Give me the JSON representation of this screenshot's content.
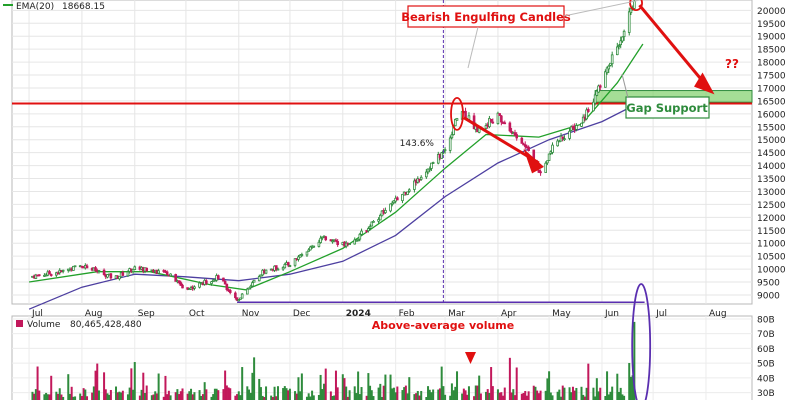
{
  "chart_data": {
    "type": "candlestick",
    "legend": {
      "ema20_label": "EMA(20)",
      "ema20_value": "18668.15",
      "ema20_color": "#22a02a",
      "sma_color": "#4d3fa0"
    },
    "x_labels": [
      "Jul",
      "Aug",
      "Sep",
      "Oct",
      "Nov",
      "Dec",
      "2024",
      "Feb",
      "Mar",
      "Apr",
      "May",
      "Jun",
      "Jul",
      "Aug"
    ],
    "y_ticks": [
      9000,
      9500,
      10000,
      10500,
      11000,
      11500,
      12000,
      12500,
      13000,
      13500,
      14000,
      14500,
      15000,
      15500,
      16000,
      16500,
      17000,
      17500,
      18000,
      18500,
      19000,
      19500,
      20000
    ],
    "price_range": [
      8650,
      20400
    ],
    "support_level": 16400,
    "gap_zone": [
      16450,
      16900
    ],
    "price_path": [
      {
        "date": "2023-07-01",
        "value": 9700
      },
      {
        "date": "2023-07-20",
        "value": 9900
      },
      {
        "date": "2023-08-01",
        "value": 10150
      },
      {
        "date": "2023-08-20",
        "value": 9650
      },
      {
        "date": "2023-09-01",
        "value": 10050
      },
      {
        "date": "2023-09-20",
        "value": 9850
      },
      {
        "date": "2023-10-01",
        "value": 9200
      },
      {
        "date": "2023-10-20",
        "value": 9700
      },
      {
        "date": "2023-10-31",
        "value": 8800
      },
      {
        "date": "2023-11-15",
        "value": 9900
      },
      {
        "date": "2023-12-01",
        "value": 10200
      },
      {
        "date": "2023-12-20",
        "value": 11200
      },
      {
        "date": "2024-01-05",
        "value": 10900
      },
      {
        "date": "2024-01-20",
        "value": 11900
      },
      {
        "date": "2024-02-10",
        "value": 13200
      },
      {
        "date": "2024-03-01",
        "value": 14600
      },
      {
        "date": "2024-03-10",
        "value": 16200
      },
      {
        "date": "2024-03-20",
        "value": 15400
      },
      {
        "date": "2024-04-01",
        "value": 15900
      },
      {
        "date": "2024-04-20",
        "value": 14500
      },
      {
        "date": "2024-04-25",
        "value": 13700
      },
      {
        "date": "2024-05-05",
        "value": 14900
      },
      {
        "date": "2024-05-20",
        "value": 15700
      },
      {
        "date": "2024-06-01",
        "value": 17200
      },
      {
        "date": "2024-06-10",
        "value": 18600
      },
      {
        "date": "2024-06-20",
        "value": 20300
      }
    ],
    "ema20_path": [
      {
        "date": "2023-07-01",
        "value": 9500
      },
      {
        "date": "2023-08-10",
        "value": 9900
      },
      {
        "date": "2023-09-10",
        "value": 9900
      },
      {
        "date": "2023-10-15",
        "value": 9400
      },
      {
        "date": "2023-11-05",
        "value": 9200
      },
      {
        "date": "2023-12-01",
        "value": 9900
      },
      {
        "date": "2024-01-01",
        "value": 10800
      },
      {
        "date": "2024-02-01",
        "value": 12200
      },
      {
        "date": "2024-03-01",
        "value": 13900
      },
      {
        "date": "2024-03-25",
        "value": 15200
      },
      {
        "date": "2024-04-25",
        "value": 15100
      },
      {
        "date": "2024-05-20",
        "value": 15600
      },
      {
        "date": "2024-06-10",
        "value": 17200
      },
      {
        "date": "2024-06-25",
        "value": 18700
      }
    ],
    "sma_path": [
      {
        "date": "2023-07-01",
        "value": 8450
      },
      {
        "date": "2023-08-01",
        "value": 9300
      },
      {
        "date": "2023-09-01",
        "value": 9800
      },
      {
        "date": "2023-10-01",
        "value": 9700
      },
      {
        "date": "2023-11-01",
        "value": 9550
      },
      {
        "date": "2023-12-01",
        "value": 9800
      },
      {
        "date": "2024-01-01",
        "value": 10300
      },
      {
        "date": "2024-02-01",
        "value": 11300
      },
      {
        "date": "2024-03-01",
        "value": 12800
      },
      {
        "date": "2024-04-01",
        "value": 14100
      },
      {
        "date": "2024-05-01",
        "value": 15000
      },
      {
        "date": "2024-06-01",
        "value": 15700
      },
      {
        "date": "2024-06-25",
        "value": 16500
      }
    ],
    "annotations": {
      "bearish_label": "Bearish Engulfing Candles",
      "gap_label": "Gap Support",
      "question_label": "??",
      "pct_label": "143.6%",
      "volume_note": "Above-average volume"
    },
    "colors": {
      "up": "#2e8b3c",
      "down": "#c2185b",
      "annotation": "#e01010",
      "guide": "#5a2fb0"
    },
    "volume": {
      "label": "Volume",
      "value": "80,465,428,480",
      "ticks": [
        "80B",
        "70B",
        "60B",
        "50B",
        "40B",
        "30B"
      ],
      "range": [
        25,
        82
      ],
      "spike": 78
    }
  }
}
